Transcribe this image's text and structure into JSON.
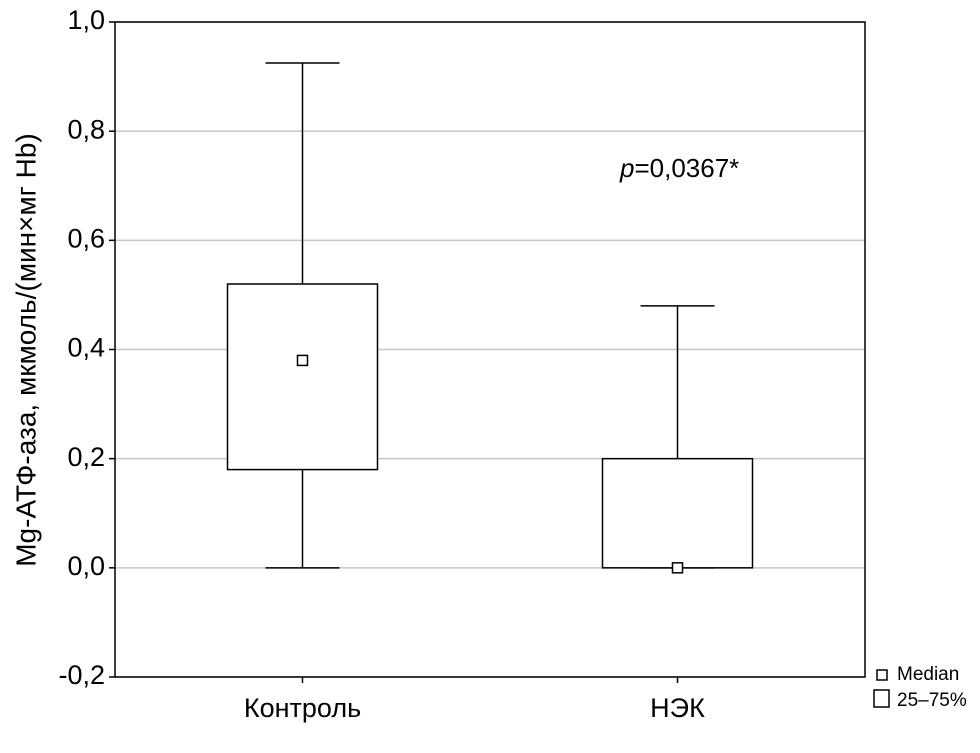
{
  "chart_data": {
    "type": "box",
    "y_label": "Mg-АТФ-аза, мкмоль/(мин×мг Hb)",
    "annotation": {
      "italic": "p",
      "text": "=0,0367*"
    },
    "categories": [
      "Контроль",
      "НЭК"
    ],
    "min": [
      0.0,
      0.0
    ],
    "q1": [
      0.18,
      0.0
    ],
    "median": [
      0.38,
      0.0
    ],
    "q3": [
      0.52,
      0.2
    ],
    "max": [
      0.925,
      0.48
    ],
    "ylim": [
      -0.2,
      1.0
    ],
    "yticks": [
      {
        "value": -0.2,
        "label": "-0,2"
      },
      {
        "value": 0.0,
        "label": "0,0"
      },
      {
        "value": 0.2,
        "label": "0,2"
      },
      {
        "value": 0.4,
        "label": "0,4"
      },
      {
        "value": 0.6,
        "label": "0,6"
      },
      {
        "value": 0.8,
        "label": "0,8"
      },
      {
        "value": 1.0,
        "label": "1,0"
      }
    ],
    "grid": true,
    "legend": [
      "Median",
      "25–75%"
    ]
  }
}
